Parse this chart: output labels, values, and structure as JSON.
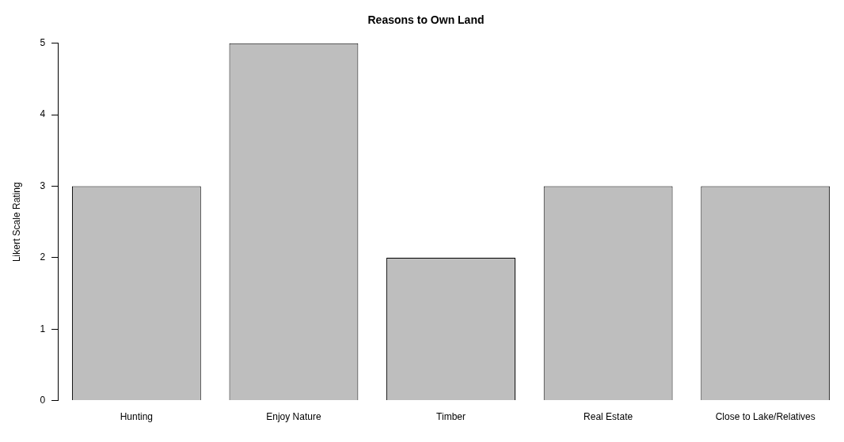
{
  "chart_data": {
    "type": "bar",
    "title": "Reasons to Own Land",
    "ylabel": "Likert Scale Rating",
    "categories": [
      "Hunting",
      "Enjoy Nature",
      "Timber",
      "Real Estate",
      "Close to Lake/Relatives"
    ],
    "values": [
      3,
      5,
      2,
      3,
      3
    ],
    "color": "#bebebe",
    "ylim": [
      0,
      5
    ],
    "yticks": [
      0,
      1,
      2,
      3,
      4,
      5
    ],
    "grid": false,
    "legend": false
  }
}
